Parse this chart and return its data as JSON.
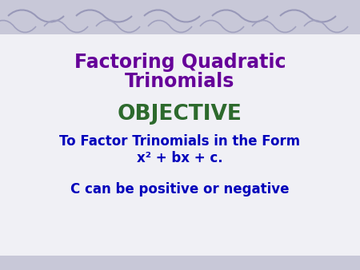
{
  "title_line1": "Factoring Quadratic",
  "title_line2": "Trinomials",
  "title_color": "#660099",
  "objective_text": "OBJECTIVE",
  "objective_color": "#2D6A2D",
  "body_line1": "To Factor Trinomials in the Form",
  "body_line2": "x² + bx + c.",
  "body_line3": "C can be positive or negative",
  "body_color": "#0000BB",
  "bg_main": "#F0F0F5",
  "bg_band": "#C8C8D8",
  "fig_width": 4.5,
  "fig_height": 3.38,
  "dpi": 100
}
